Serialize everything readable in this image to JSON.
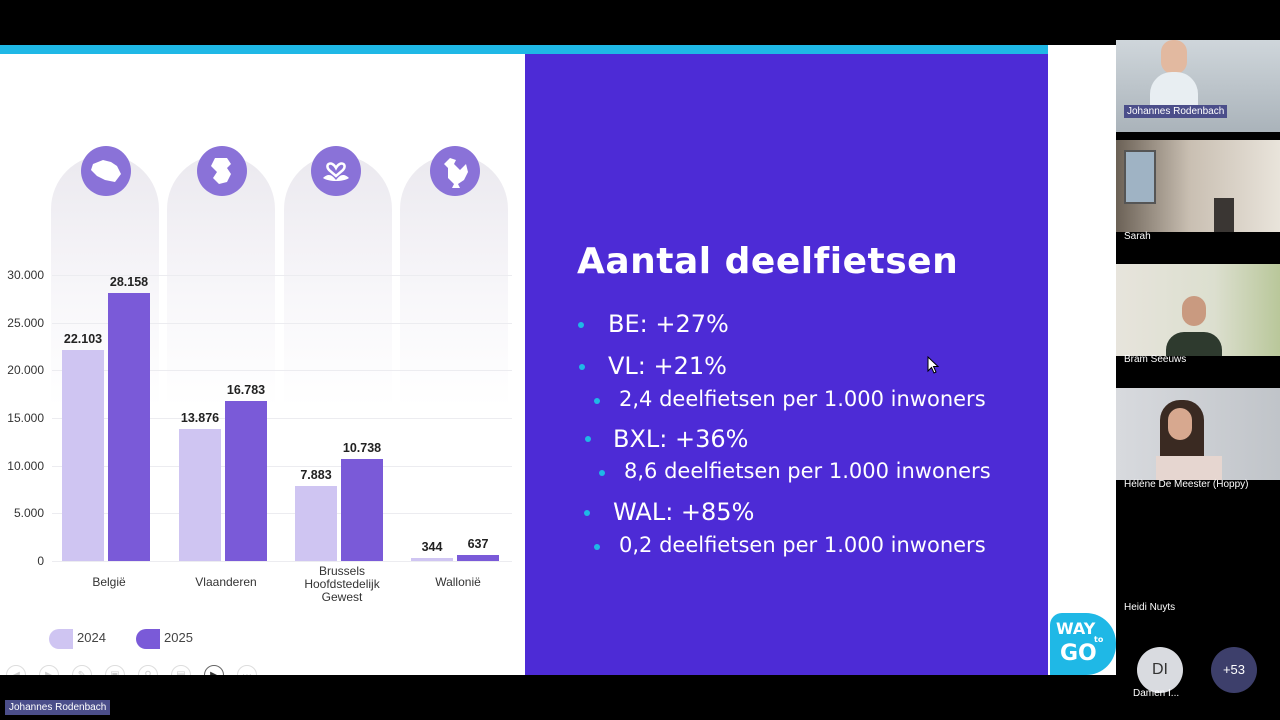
{
  "slide": {
    "title": "Aantal deelfietsen",
    "bullets": [
      {
        "level": 1,
        "text": "BE: +27%"
      },
      {
        "level": 1,
        "text": "VL: +21%"
      },
      {
        "level": 2,
        "text": "2,4 deelfietsen per 1.000 inwoners"
      },
      {
        "level": 1,
        "text": "BXL: +36%"
      },
      {
        "level": 2,
        "text": "8,6 deelfietsen per 1.000 inwoners"
      },
      {
        "level": 1,
        "text": "WAL: +85%"
      },
      {
        "level": 2,
        "text": "0,2 deelfietsen per 1.000 inwoners"
      }
    ],
    "logo": {
      "line1": "WAY",
      "small": "to",
      "line2": "GO"
    },
    "colors": {
      "accent_bar": "#1fb8e6",
      "panel": "#4d2bd6",
      "bar_2024": "#cfc5f2",
      "bar_2025": "#7a5ad8"
    }
  },
  "chart_data": {
    "type": "bar",
    "categories": [
      "België",
      "Vlaanderen",
      "Brussels Hoofdstedelijk Gewest",
      "Wallonië"
    ],
    "category_lines": [
      [
        "België"
      ],
      [
        "Vlaanderen"
      ],
      [
        "Brussels",
        "Hoofdstedelijk",
        "Gewest"
      ],
      [
        "Wallonië"
      ]
    ],
    "series": [
      {
        "name": "2024",
        "values": [
          22103,
          13876,
          7883,
          344
        ],
        "labels": [
          "22.103",
          "13.876",
          "7.883",
          "344"
        ]
      },
      {
        "name": "2025",
        "values": [
          28158,
          16783,
          10738,
          637
        ],
        "labels": [
          "28.158",
          "16.783",
          "10.738",
          "637"
        ]
      }
    ],
    "yticks": [
      "0",
      "5.000",
      "10.000",
      "15.000",
      "20.000",
      "25.000",
      "30.000"
    ],
    "ylim": [
      0,
      30000
    ],
    "legend_position": "bottom-left",
    "grid": true
  },
  "meeting": {
    "participants": [
      {
        "name": "Johannes Rodenbach",
        "highlight": true
      },
      {
        "name": "Sarah",
        "highlight": false
      },
      {
        "name": "Bram Seeuws",
        "highlight": false
      },
      {
        "name": "Hélène De Meester (Hoppy)",
        "highlight": false
      },
      {
        "name": "Heidi Nuyts",
        "highlight": false
      }
    ],
    "avatar_initials": "DI",
    "avatar_name": "Damen I...",
    "more_count": "+53",
    "presenter_label": "Johannes Rodenbach"
  }
}
